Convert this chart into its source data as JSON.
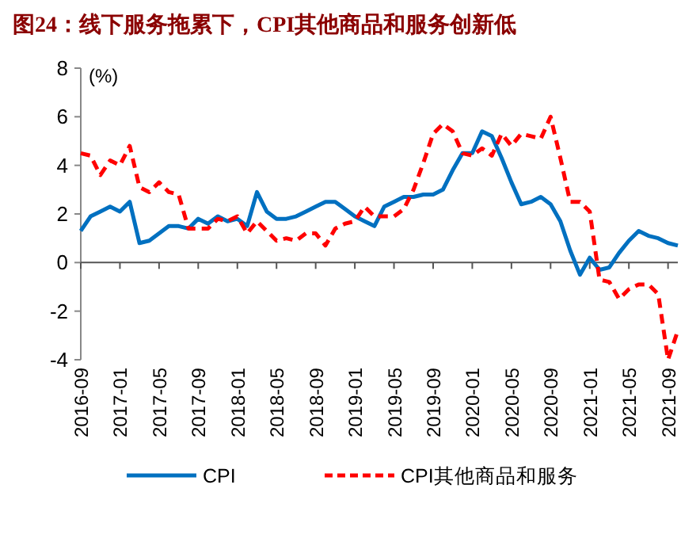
{
  "chart_data": {
    "type": "line",
    "title": "图24：线下服务拖累下，CPI其他商品和服务创新低",
    "ylabel": "(%)",
    "x": [
      "2016-09",
      "2016-10",
      "2016-11",
      "2016-12",
      "2017-01",
      "2017-02",
      "2017-03",
      "2017-04",
      "2017-05",
      "2017-06",
      "2017-07",
      "2017-08",
      "2017-09",
      "2017-10",
      "2017-11",
      "2017-12",
      "2018-01",
      "2018-02",
      "2018-03",
      "2018-04",
      "2018-05",
      "2018-06",
      "2018-07",
      "2018-08",
      "2018-09",
      "2018-10",
      "2018-11",
      "2018-12",
      "2019-01",
      "2019-02",
      "2019-03",
      "2019-04",
      "2019-05",
      "2019-06",
      "2019-07",
      "2019-08",
      "2019-09",
      "2019-10",
      "2019-11",
      "2019-12",
      "2020-01",
      "2020-02",
      "2020-03",
      "2020-04",
      "2020-05",
      "2020-06",
      "2020-07",
      "2020-08",
      "2020-09",
      "2020-10",
      "2020-11",
      "2020-12",
      "2021-01",
      "2021-02",
      "2021-03",
      "2021-04",
      "2021-05",
      "2021-06",
      "2021-07",
      "2021-08",
      "2021-09",
      "2021-10"
    ],
    "series": [
      {
        "name": "CPI",
        "color": "#0070c0",
        "line_style": "solid",
        "values": [
          1.3,
          1.9,
          2.1,
          2.3,
          2.1,
          2.5,
          0.8,
          0.9,
          1.2,
          1.5,
          1.5,
          1.4,
          1.8,
          1.6,
          1.9,
          1.7,
          1.8,
          1.5,
          2.9,
          2.1,
          1.8,
          1.8,
          1.9,
          2.1,
          2.3,
          2.5,
          2.5,
          2.2,
          1.9,
          1.7,
          1.5,
          2.3,
          2.5,
          2.7,
          2.7,
          2.8,
          2.8,
          3.0,
          3.8,
          4.5,
          4.5,
          5.4,
          5.2,
          4.3,
          3.3,
          2.4,
          2.5,
          2.7,
          2.4,
          1.7,
          0.5,
          -0.5,
          0.2,
          -0.3,
          -0.2,
          0.4,
          0.9,
          1.3,
          1.1,
          1.0,
          0.8,
          0.7
        ]
      },
      {
        "name": "CPI其他商品和服务",
        "color": "#ff0000",
        "line_style": "dashed",
        "values": [
          4.5,
          4.4,
          3.6,
          4.2,
          4.0,
          4.8,
          3.1,
          2.9,
          3.3,
          2.9,
          2.8,
          1.4,
          1.4,
          1.4,
          1.8,
          1.7,
          1.9,
          1.2,
          1.7,
          1.3,
          0.9,
          1.0,
          0.9,
          1.2,
          1.2,
          0.7,
          1.4,
          1.6,
          1.7,
          2.3,
          1.9,
          1.9,
          1.9,
          2.2,
          3.0,
          4.1,
          5.3,
          5.7,
          5.4,
          4.5,
          4.4,
          4.7,
          4.4,
          5.3,
          4.8,
          5.3,
          5.2,
          5.1,
          6.0,
          4.3,
          2.5,
          2.5,
          2.1,
          -0.7,
          -0.8,
          -1.5,
          -1.1,
          -0.9,
          -0.9,
          -1.3,
          -4.0,
          -2.8
        ]
      }
    ],
    "xlim": [
      "2016-09",
      "2021-10"
    ],
    "xticks": [
      "2016-09",
      "2017-01",
      "2017-05",
      "2017-09",
      "2018-01",
      "2018-05",
      "2018-09",
      "2019-01",
      "2019-05",
      "2019-09",
      "2020-01",
      "2020-05",
      "2020-09",
      "2021-01",
      "2021-05",
      "2021-09"
    ],
    "ylim": [
      -4,
      8
    ],
    "yticks": [
      -4,
      -2,
      0,
      2,
      4,
      6,
      8
    ],
    "legend": "bottom"
  }
}
